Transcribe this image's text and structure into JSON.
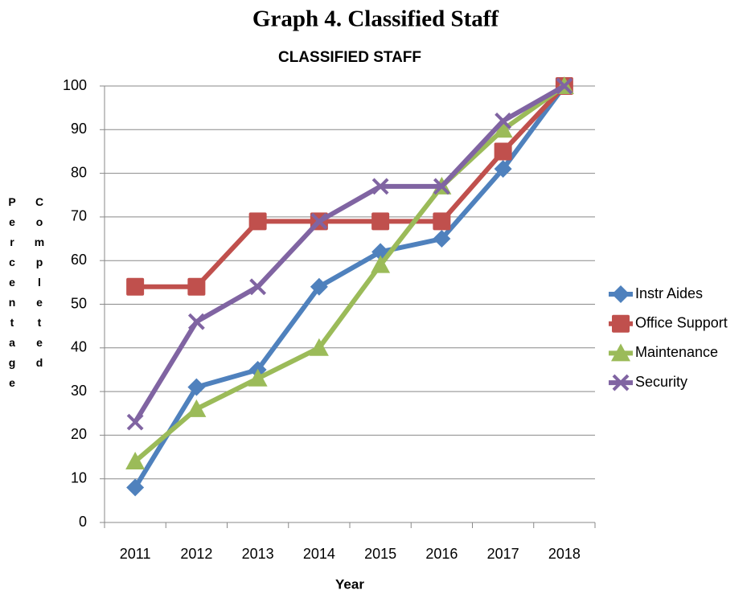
{
  "page_title": "Graph 4. Classified Staff",
  "chart_data": {
    "type": "line",
    "title": "CLASSIFIED STAFF",
    "xlabel": "Year",
    "ylabel": [
      "Percentage",
      "Completed"
    ],
    "categories": [
      "2011",
      "2012",
      "2013",
      "2014",
      "2015",
      "2016",
      "2017",
      "2018"
    ],
    "series": [
      {
        "name": "Instr Aides",
        "color": "#4f81bd",
        "marker": "diamond",
        "values": [
          8,
          31,
          35,
          54,
          62,
          65,
          81,
          100
        ]
      },
      {
        "name": "Office Support",
        "color": "#c0504d",
        "marker": "square",
        "values": [
          54,
          54,
          69,
          69,
          69,
          69,
          85,
          100
        ]
      },
      {
        "name": "Maintenance",
        "color": "#9bbb59",
        "marker": "triangle",
        "values": [
          14,
          26,
          33,
          40,
          59,
          77,
          90,
          100
        ]
      },
      {
        "name": "Security",
        "color": "#8064a2",
        "marker": "x",
        "values": [
          23,
          46,
          54,
          69,
          77,
          77,
          92,
          100
        ]
      }
    ],
    "ylim": [
      0,
      100
    ],
    "yticks": [
      0,
      10,
      20,
      30,
      40,
      50,
      60,
      70,
      80,
      90,
      100
    ],
    "grid": true,
    "legend": "right"
  }
}
